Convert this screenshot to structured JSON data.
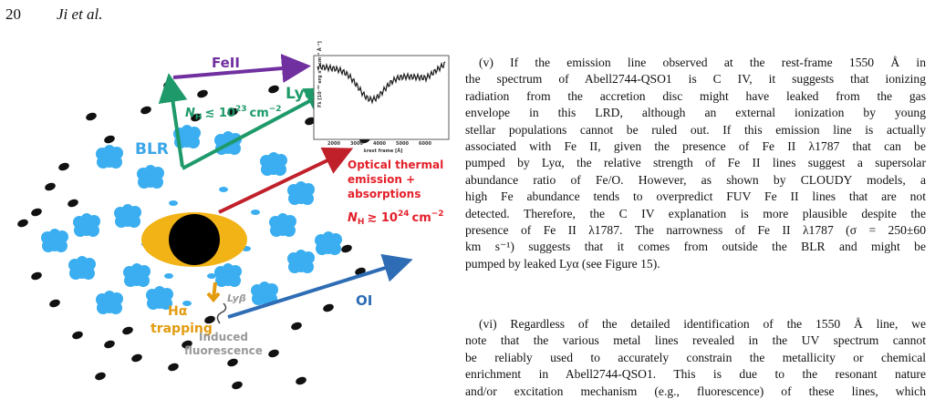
{
  "header": {
    "page_number": "20",
    "authors": "Ji et al."
  },
  "figure": {
    "labels": {
      "feii": "FeII",
      "lya": "Lyα",
      "blr": "BLR",
      "optical": [
        "Optical thermal",
        "emission +",
        "absorptions"
      ],
      "oi": "OI",
      "ha": "Hα",
      "trapping": "trapping",
      "lyb": "Lyβ",
      "induced": [
        "Induced",
        "fluorescence"
      ]
    },
    "nh_low": {
      "symbol": "N",
      "sub": "H",
      "relation": "≲ 10",
      "exp": "23",
      "unit": "cm",
      "unit_exp": "−2"
    },
    "nh_high": {
      "symbol": "N",
      "sub": "H",
      "relation": "≳ 10",
      "exp": "24",
      "unit": "cm",
      "unit_exp": "−2"
    },
    "inset": {
      "y_label": "Fλ [10⁻²⁰ erg s⁻¹ cm⁻² Å⁻¹]",
      "x_label": "λrest frame [Å]",
      "x_ticks": [
        "2000",
        "3000",
        "4000",
        "5000",
        "6000"
      ]
    }
  },
  "paragraphs": [
    [
      "(v) If the emission line observed at the rest-frame 1550 Å in",
      "the spectrum of Abell2744-QSO1 is C IV, it suggests that ionizing",
      "radiation from the accretion disc might have leaked from the gas",
      "envelope in this LRD, although an external ionization by young",
      "stellar populations cannot be ruled out. If this emission line is actually",
      "associated with Fe II, given the presence of Fe II λ1787 that can be",
      "pumped by Lyα, the relative strength of Fe II lines suggest a supersolar",
      "abundance ratio of Fe/O. However, as shown by CLOUDY models, a",
      "high Fe abundance tends to overpredict FUV Fe II lines that are not",
      "detected. Therefore, the C IV explanation is more plausible despite the",
      "presence of Fe II λ1787. The narrowness of Fe II λ1787 (σ = 250±60",
      "km s⁻¹) suggests that it comes from outside the BLR and might be",
      "pumped by leaked Lyα (see Figure 15)."
    ],
    [
      "(vi) Regardless of the detailed identification of the 1550 Å line, we",
      "note that the various metal lines revealed in the UV spectrum cannot",
      "be reliably used to accurately constrain the metallicity or chemical",
      "enrichment in Abell2744-QSO1. This is due to the resonant nature",
      "and/or excitation mechanism (e.g., fluorescence) of these lines, which"
    ]
  ]
}
